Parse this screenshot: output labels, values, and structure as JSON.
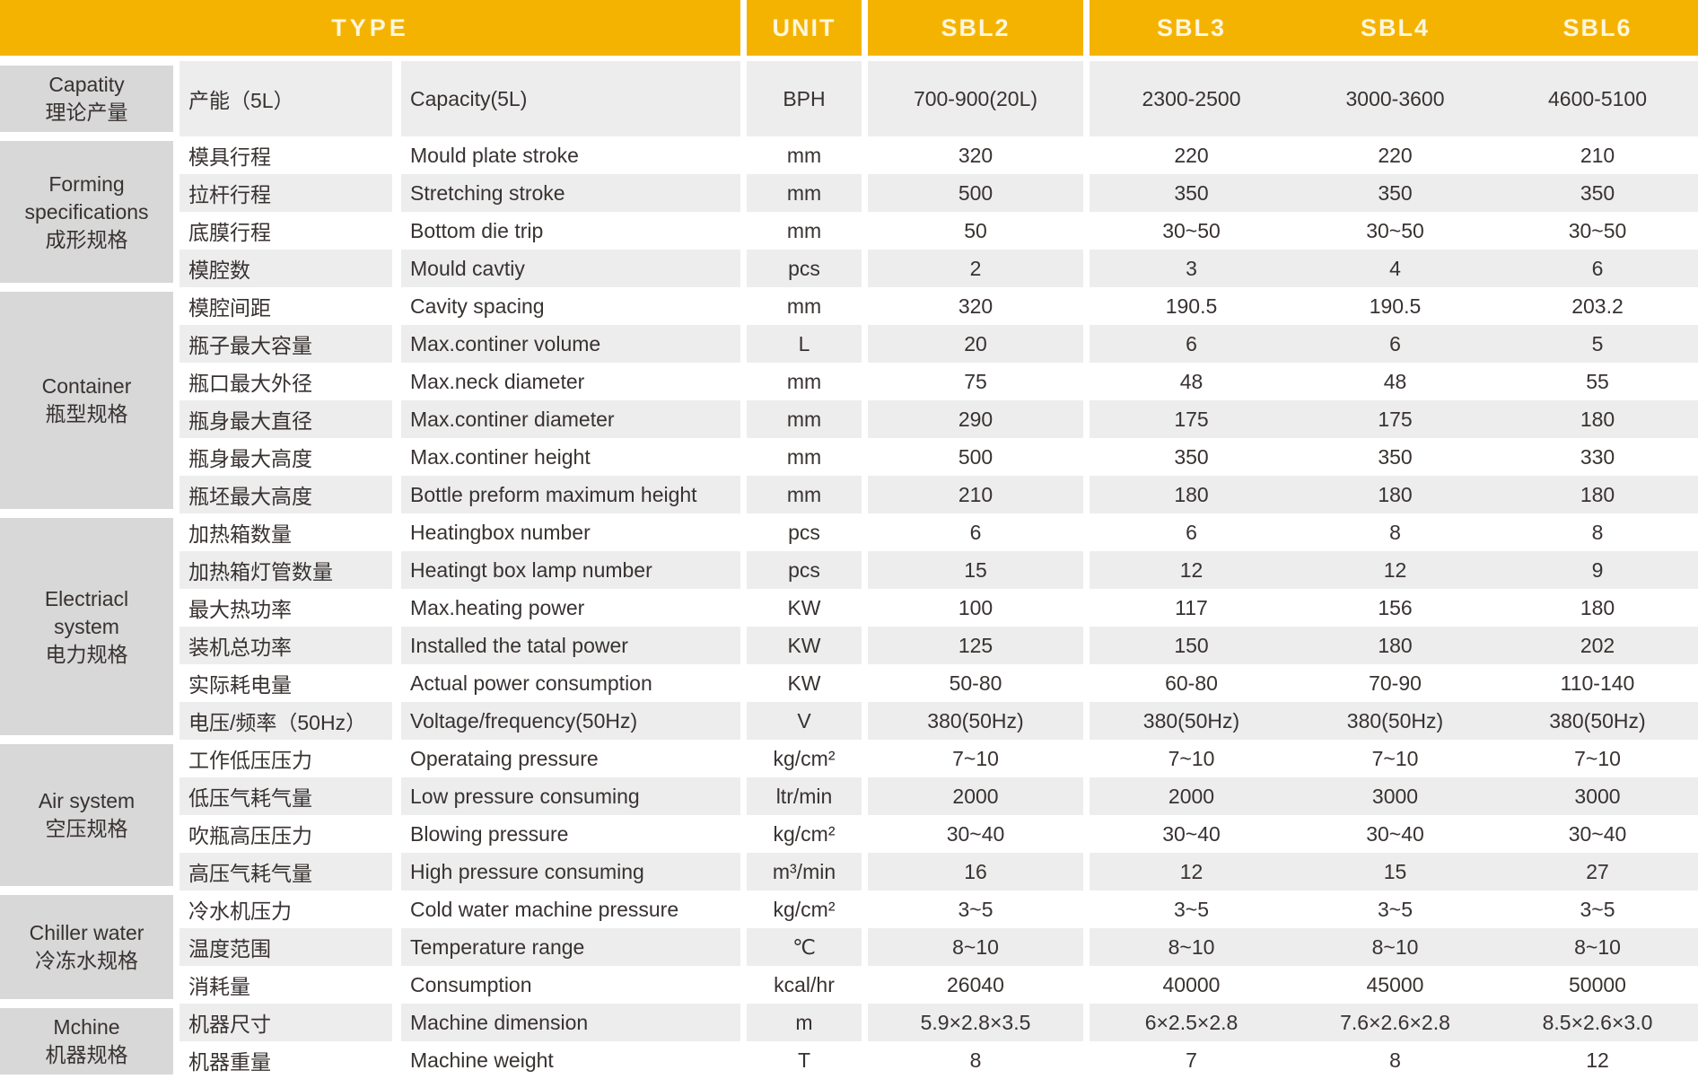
{
  "header": {
    "type_label": "TYPE",
    "unit_label": "UNIT",
    "models": [
      "SBL2",
      "SBL3",
      "SBL4",
      "SBL6"
    ]
  },
  "colors": {
    "header_bg": "#F5B301",
    "header_text": "#FCF6DC",
    "category_bg": "#D8D8D8",
    "row_stripe": "#EDEDED",
    "text": "#383231"
  },
  "sections": [
    {
      "name_lines": [
        "Capatity",
        "理论产量"
      ],
      "rows": [
        {
          "cn": "产能（5L）",
          "en": "Capacity(5L)",
          "unit": "BPH",
          "values": [
            "700-900(20L)",
            "2300-2500",
            "3000-3600",
            "4600-5100"
          ],
          "tall": true
        }
      ]
    },
    {
      "name_lines": [
        "Forming",
        "specifications",
        "成形规格"
      ],
      "rows": [
        {
          "cn": "模具行程",
          "en": "Mould plate stroke",
          "unit": "mm",
          "values": [
            "320",
            "220",
            "220",
            "210"
          ]
        },
        {
          "cn": "拉杆行程",
          "en": "Stretching stroke",
          "unit": "mm",
          "values": [
            "500",
            "350",
            "350",
            "350"
          ]
        },
        {
          "cn": "底膜行程",
          "en": "Bottom die trip",
          "unit": "mm",
          "values": [
            "50",
            "30~50",
            "30~50",
            "30~50"
          ]
        },
        {
          "cn": "模腔数",
          "en": "Mould cavtiy",
          "unit": "pcs",
          "values": [
            "2",
            "3",
            "4",
            "6"
          ]
        }
      ]
    },
    {
      "name_lines": [
        "Container",
        "瓶型规格"
      ],
      "rows": [
        {
          "cn": "模腔间距",
          "en": "Cavity spacing",
          "unit": "mm",
          "values": [
            "320",
            "190.5",
            "190.5",
            "203.2"
          ]
        },
        {
          "cn": "瓶子最大容量",
          "en": "Max.continer volume",
          "unit": "L",
          "values": [
            "20",
            "6",
            "6",
            "5"
          ]
        },
        {
          "cn": "瓶口最大外径",
          "en": "Max.neck diameter",
          "unit": "mm",
          "values": [
            "75",
            "48",
            "48",
            "55"
          ]
        },
        {
          "cn": "瓶身最大直径",
          "en": "Max.continer diameter",
          "unit": "mm",
          "values": [
            "290",
            "175",
            "175",
            "180"
          ]
        },
        {
          "cn": "瓶身最大高度",
          "en": "Max.continer height",
          "unit": "mm",
          "values": [
            "500",
            "350",
            "350",
            "330"
          ]
        },
        {
          "cn": "瓶坯最大高度",
          "en": "Bottle preform maximum height",
          "unit": "mm",
          "values": [
            "210",
            "180",
            "180",
            "180"
          ]
        }
      ]
    },
    {
      "name_lines": [
        "Electriacl",
        "system",
        "电力规格"
      ],
      "rows": [
        {
          "cn": "加热箱数量",
          "en": "Heatingbox number",
          "unit": "pcs",
          "values": [
            "6",
            "6",
            "8",
            "8"
          ]
        },
        {
          "cn": "加热箱灯管数量",
          "en": "Heatingt box lamp number",
          "unit": "pcs",
          "values": [
            "15",
            "12",
            "12",
            "9"
          ]
        },
        {
          "cn": "最大热功率",
          "en": "Max.heating power",
          "unit": "KW",
          "values": [
            "100",
            "117",
            "156",
            "180"
          ]
        },
        {
          "cn": "装机总功率",
          "en": "Installed the tatal power",
          "unit": "KW",
          "values": [
            "125",
            "150",
            "180",
            "202"
          ]
        },
        {
          "cn": "实际耗电量",
          "en": "Actual power consumption",
          "unit": "KW",
          "values": [
            "50-80",
            "60-80",
            "70-90",
            "110-140"
          ]
        },
        {
          "cn": "电压/频率（50Hz）",
          "en": "Voltage/frequency(50Hz)",
          "unit": "V",
          "values": [
            "380(50Hz)",
            "380(50Hz)",
            "380(50Hz)",
            "380(50Hz)"
          ]
        }
      ]
    },
    {
      "name_lines": [
        "Air system",
        "空压规格"
      ],
      "rows": [
        {
          "cn": "工作低压压力",
          "en": "Operataing pressure",
          "unit": "kg/cm²",
          "values": [
            "7~10",
            "7~10",
            "7~10",
            "7~10"
          ]
        },
        {
          "cn": "低压气耗气量",
          "en": "Low pressure consuming",
          "unit": "ltr/min",
          "values": [
            "2000",
            "2000",
            "3000",
            "3000"
          ]
        },
        {
          "cn": "吹瓶高压压力",
          "en": "Blowing pressure",
          "unit": "kg/cm²",
          "values": [
            "30~40",
            "30~40",
            "30~40",
            "30~40"
          ]
        },
        {
          "cn": "高压气耗气量",
          "en": "High pressure consuming",
          "unit": "m³/min",
          "values": [
            "16",
            "12",
            "15",
            "27"
          ]
        }
      ]
    },
    {
      "name_lines": [
        "Chiller water",
        "冷冻水规格"
      ],
      "rows": [
        {
          "cn": "冷水机压力",
          "en": "Cold water machine pressure",
          "unit": "kg/cm²",
          "values": [
            "3~5",
            "3~5",
            "3~5",
            "3~5"
          ]
        },
        {
          "cn": "温度范围",
          "en": "Temperature range",
          "unit": "℃",
          "values": [
            "8~10",
            "8~10",
            "8~10",
            "8~10"
          ]
        },
        {
          "cn": "消耗量",
          "en": "Consumption",
          "unit": "kcal/hr",
          "values": [
            "26040",
            "40000",
            "45000",
            "50000"
          ]
        }
      ]
    },
    {
      "name_lines": [
        "Mchine",
        "机器规格"
      ],
      "rows": [
        {
          "cn": "机器尺寸",
          "en": "Machine dimension",
          "unit": "m",
          "values": [
            "5.9×2.8×3.5",
            "6×2.5×2.8",
            "7.6×2.6×2.8",
            "8.5×2.6×3.0"
          ]
        },
        {
          "cn": "机器重量",
          "en": "Machine weight",
          "unit": "T",
          "values": [
            "8",
            "7",
            "8",
            "12"
          ]
        }
      ]
    }
  ]
}
